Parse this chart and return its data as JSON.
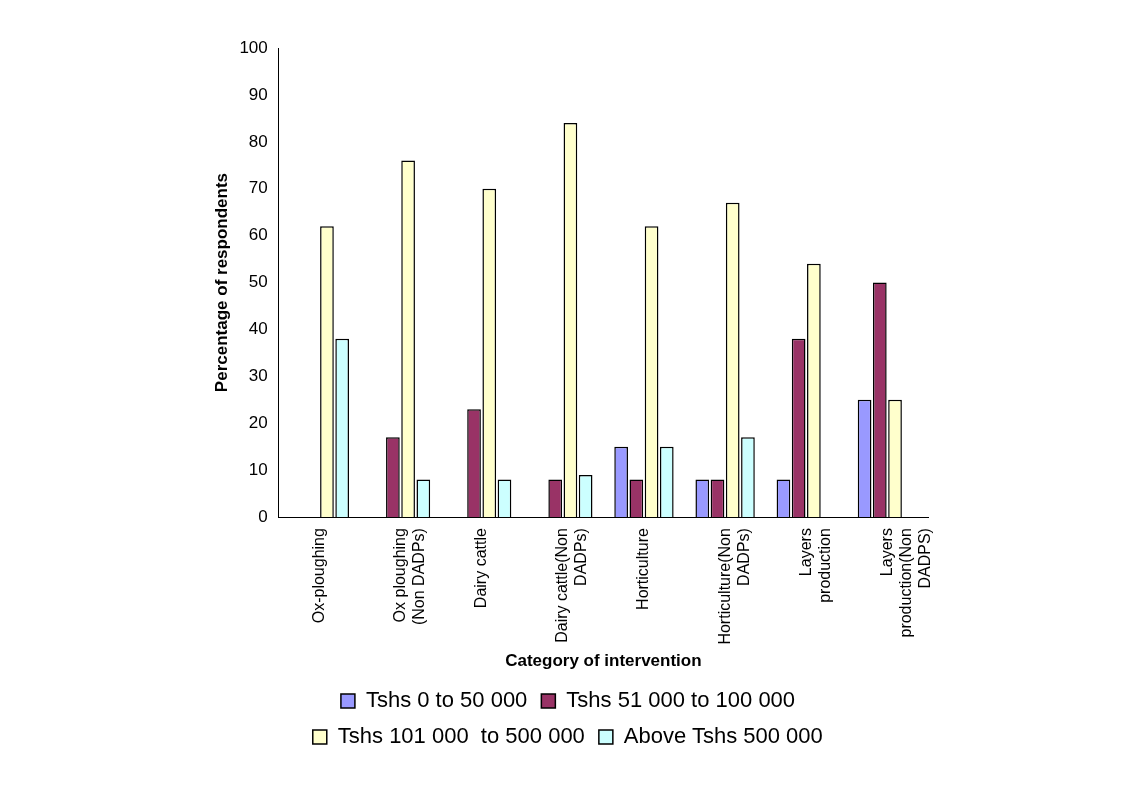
{
  "chart_data": {
    "type": "bar",
    "xlabel": "Category of intervention",
    "ylabel": "Percentage of respondents",
    "categories": [
      "Ox-ploughing",
      "Ox ploughing (Non DADPs)",
      "Dairy cattle",
      "Dairy cattle(Non DADPs)",
      "Horticulture",
      "Horticulture(Non DADPs)",
      "Layers production",
      "Layers production(Non DADPS)"
    ],
    "series": [
      {
        "name": "Tshs 0 to 50 000",
        "color": "#9999ff",
        "values": [
          0,
          0,
          0,
          0,
          15,
          8,
          8,
          25
        ]
      },
      {
        "name": "Tshs 51 000 to 100 000",
        "color": "#993366",
        "values": [
          0,
          17,
          23,
          8,
          8,
          8,
          38,
          50
        ]
      },
      {
        "name": "Tshs 101 000  to 500 000",
        "color": "#ffffcc",
        "values": [
          62,
          76,
          70,
          84,
          62,
          67,
          54,
          25
        ]
      },
      {
        "name": "Above Tshs 500 000",
        "color": "#ccffff",
        "values": [
          38,
          8,
          8,
          9,
          15,
          17,
          0,
          0
        ]
      }
    ],
    "ylim": [
      0,
      100
    ],
    "yticks": [
      0,
      10,
      20,
      30,
      40,
      50,
      60,
      70,
      80,
      90,
      100
    ],
    "grid": false,
    "legend": "bottom"
  }
}
